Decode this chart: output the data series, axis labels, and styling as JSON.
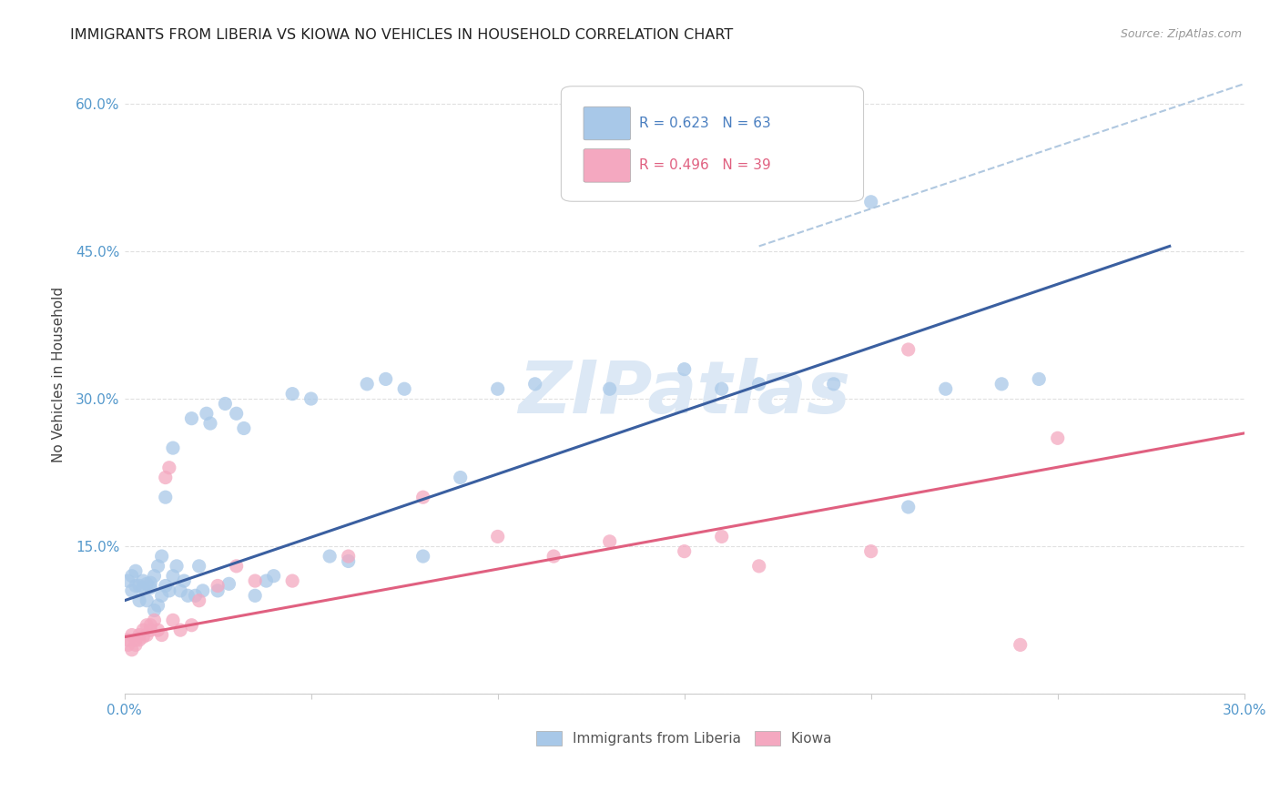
{
  "title": "IMMIGRANTS FROM LIBERIA VS KIOWA NO VEHICLES IN HOUSEHOLD CORRELATION CHART",
  "source": "Source: ZipAtlas.com",
  "ylabel": "No Vehicles in Household",
  "xlim": [
    0.0,
    0.3
  ],
  "ylim": [
    0.0,
    0.65
  ],
  "blue_color": "#a8c8e8",
  "blue_line_color": "#3a5fa0",
  "pink_color": "#f4a8c0",
  "pink_line_color": "#e06080",
  "dashed_line_color": "#b0c8e0",
  "watermark_color": "#dce8f5",
  "legend_blue_r": "R = 0.623",
  "legend_blue_n": "N = 63",
  "legend_pink_r": "R = 0.496",
  "legend_pink_n": "N = 39",
  "legend_label_blue": "Immigrants from Liberia",
  "legend_label_pink": "Kiowa",
  "blue_scatter_x": [
    0.001,
    0.002,
    0.002,
    0.003,
    0.003,
    0.004,
    0.004,
    0.005,
    0.005,
    0.006,
    0.006,
    0.007,
    0.007,
    0.008,
    0.008,
    0.009,
    0.009,
    0.01,
    0.01,
    0.011,
    0.011,
    0.012,
    0.013,
    0.013,
    0.014,
    0.015,
    0.016,
    0.017,
    0.018,
    0.019,
    0.02,
    0.021,
    0.022,
    0.023,
    0.025,
    0.027,
    0.028,
    0.03,
    0.032,
    0.035,
    0.038,
    0.04,
    0.045,
    0.05,
    0.055,
    0.06,
    0.065,
    0.07,
    0.075,
    0.08,
    0.09,
    0.1,
    0.11,
    0.13,
    0.15,
    0.16,
    0.17,
    0.19,
    0.2,
    0.21,
    0.22,
    0.235,
    0.245
  ],
  "blue_scatter_y": [
    0.115,
    0.105,
    0.12,
    0.11,
    0.125,
    0.095,
    0.11,
    0.108,
    0.115,
    0.112,
    0.095,
    0.113,
    0.108,
    0.12,
    0.085,
    0.13,
    0.09,
    0.1,
    0.14,
    0.11,
    0.2,
    0.105,
    0.12,
    0.25,
    0.13,
    0.105,
    0.115,
    0.1,
    0.28,
    0.1,
    0.13,
    0.105,
    0.285,
    0.275,
    0.105,
    0.295,
    0.112,
    0.285,
    0.27,
    0.1,
    0.115,
    0.12,
    0.305,
    0.3,
    0.14,
    0.135,
    0.315,
    0.32,
    0.31,
    0.14,
    0.22,
    0.31,
    0.315,
    0.31,
    0.33,
    0.31,
    0.315,
    0.315,
    0.5,
    0.19,
    0.31,
    0.315,
    0.32
  ],
  "pink_scatter_x": [
    0.001,
    0.001,
    0.002,
    0.002,
    0.003,
    0.003,
    0.004,
    0.004,
    0.005,
    0.005,
    0.006,
    0.006,
    0.007,
    0.007,
    0.008,
    0.009,
    0.01,
    0.011,
    0.012,
    0.013,
    0.015,
    0.018,
    0.02,
    0.025,
    0.03,
    0.035,
    0.045,
    0.06,
    0.08,
    0.1,
    0.115,
    0.13,
    0.15,
    0.16,
    0.17,
    0.2,
    0.21,
    0.24,
    0.25
  ],
  "pink_scatter_y": [
    0.05,
    0.055,
    0.045,
    0.06,
    0.05,
    0.055,
    0.055,
    0.06,
    0.065,
    0.058,
    0.07,
    0.06,
    0.07,
    0.065,
    0.075,
    0.065,
    0.06,
    0.22,
    0.23,
    0.075,
    0.065,
    0.07,
    0.095,
    0.11,
    0.13,
    0.115,
    0.115,
    0.14,
    0.2,
    0.16,
    0.14,
    0.155,
    0.145,
    0.16,
    0.13,
    0.145,
    0.35,
    0.05,
    0.26
  ],
  "blue_line_x": [
    0.0,
    0.28
  ],
  "blue_line_y": [
    0.095,
    0.455
  ],
  "pink_line_x": [
    0.0,
    0.3
  ],
  "pink_line_y": [
    0.058,
    0.265
  ],
  "dashed_line_x": [
    0.17,
    0.3
  ],
  "dashed_line_y": [
    0.455,
    0.62
  ],
  "background_color": "#ffffff",
  "grid_color": "#e0e0e0",
  "scatter_size": 120
}
